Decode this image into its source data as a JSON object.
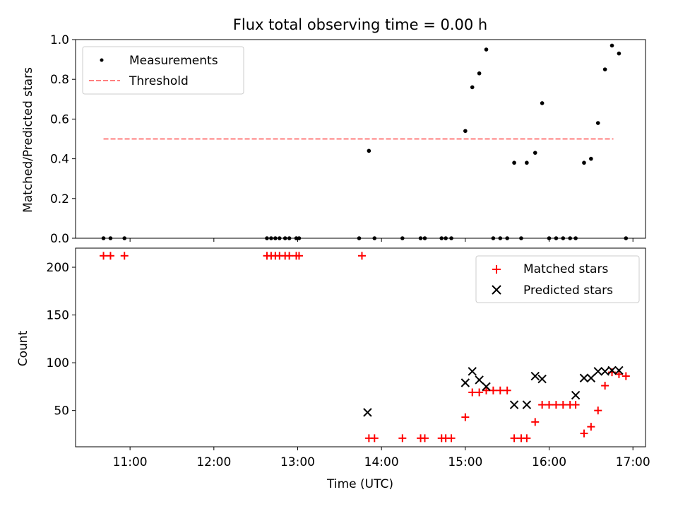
{
  "figure": {
    "title": "Flux total observing time = 0.00 h",
    "xlabel": "Time (UTC)"
  },
  "chart_data": [
    {
      "type": "scatter",
      "ylabel": "Matched/Predicted stars",
      "ylim": [
        0,
        1.0
      ],
      "yticks": [
        0.0,
        0.2,
        0.4,
        0.6,
        0.8,
        1.0
      ],
      "ytick_labels": [
        "0.0",
        "0.2",
        "0.4",
        "0.6",
        "0.8",
        "1.0"
      ],
      "legend": {
        "placement": "upper-left"
      },
      "series": [
        {
          "name": "Measurements",
          "kind": "scatter",
          "marker": "dot",
          "color": "#000000",
          "x": [
            "10:41",
            "10:46",
            "10:56",
            "12:38",
            "12:41",
            "12:44",
            "12:47",
            "12:51",
            "12:54",
            "12:59",
            "13:01",
            "13:44",
            "13:51",
            "13:55",
            "14:15",
            "14:28",
            "14:31",
            "14:43",
            "14:46",
            "14:50",
            "15:00",
            "15:05",
            "15:10",
            "15:15",
            "15:20",
            "15:25",
            "15:30",
            "15:35",
            "15:40",
            "15:44",
            "15:50",
            "15:55",
            "16:00",
            "16:05",
            "16:10",
            "16:15",
            "16:19",
            "16:25",
            "16:30",
            "16:35",
            "16:40",
            "16:45",
            "16:50",
            "16:55"
          ],
          "y": [
            0,
            0,
            0,
            0,
            0,
            0,
            0,
            0,
            0,
            0,
            0,
            0,
            0.44,
            0,
            0,
            0,
            0,
            0,
            0,
            0,
            0.54,
            0.76,
            0.83,
            0.95,
            0,
            0,
            0,
            0.38,
            0,
            0.38,
            0.43,
            0.68,
            0,
            0,
            0,
            0,
            0,
            0.38,
            0.4,
            0.58,
            0.85,
            0.97,
            0.93,
            0
          ]
        },
        {
          "name": "Threshold",
          "kind": "line",
          "style": "dashed",
          "color": "#ff7f7f",
          "x": [
            "10:41",
            "16:46"
          ],
          "y": [
            0.5,
            0.5
          ]
        }
      ]
    },
    {
      "type": "scatter",
      "ylabel": "Count",
      "ylim": [
        12,
        220
      ],
      "yticks": [
        50,
        100,
        150,
        200
      ],
      "ytick_labels": [
        "50",
        "100",
        "150",
        "200"
      ],
      "xticks": [
        "11:00",
        "12:00",
        "13:00",
        "14:00",
        "15:00",
        "16:00",
        "17:00"
      ],
      "legend": {
        "placement": "upper-right"
      },
      "series": [
        {
          "name": "Matched stars",
          "kind": "scatter",
          "marker": "plus",
          "color": "#ff0000",
          "x": [
            "10:41",
            "10:46",
            "10:56",
            "12:38",
            "12:41",
            "12:44",
            "12:47",
            "12:51",
            "12:54",
            "12:59",
            "13:01",
            "13:46",
            "13:51",
            "13:55",
            "14:15",
            "14:28",
            "14:31",
            "14:43",
            "14:46",
            "14:50",
            "15:00",
            "15:05",
            "15:10",
            "15:15",
            "15:20",
            "15:25",
            "15:30",
            "15:35",
            "15:40",
            "15:44",
            "15:50",
            "15:55",
            "16:00",
            "16:05",
            "16:10",
            "16:15",
            "16:19",
            "16:25",
            "16:30",
            "16:35",
            "16:40",
            "16:45",
            "16:50",
            "16:55"
          ],
          "y": [
            212,
            212,
            212,
            212,
            212,
            212,
            212,
            212,
            212,
            212,
            212,
            212,
            21,
            21,
            21,
            21,
            21,
            21,
            21,
            21,
            43,
            69,
            69,
            71,
            71,
            71,
            71,
            21,
            21,
            21,
            38,
            56,
            56,
            56,
            56,
            56,
            56,
            26,
            33,
            50,
            76,
            90,
            88,
            86
          ]
        },
        {
          "name": "Predicted stars",
          "kind": "scatter",
          "marker": "x",
          "color": "#000000",
          "x": [
            "13:50",
            "15:00",
            "15:05",
            "15:10",
            "15:15",
            "15:35",
            "15:44",
            "15:50",
            "15:55",
            "16:19",
            "16:25",
            "16:30",
            "16:35",
            "16:40",
            "16:45",
            "16:50"
          ],
          "y": [
            48,
            79,
            91,
            82,
            75,
            56,
            56,
            86,
            83,
            66,
            84,
            84,
            91,
            91,
            92,
            92
          ]
        }
      ]
    }
  ]
}
